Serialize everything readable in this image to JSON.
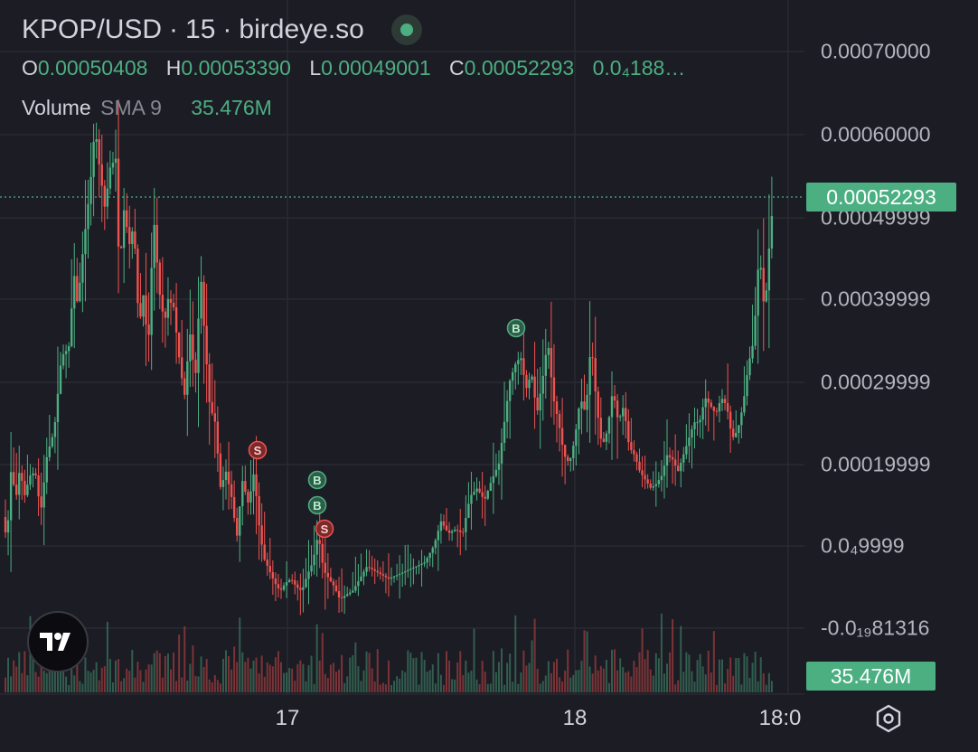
{
  "header": {
    "symbol": "KPOP/USD",
    "interval_sep": "·",
    "interval": "15",
    "source": "birdeye.so",
    "ohlc": {
      "o_label": "O",
      "o": "0.00050408",
      "h_label": "H",
      "h": "0.00053390",
      "l_label": "L",
      "l": "0.00049001",
      "c_label": "C",
      "c": "0.00052293",
      "change": "0.0₄188…"
    },
    "volume": {
      "label": "Volume",
      "sma": "SMA 9",
      "value": "35.476M"
    }
  },
  "price_axis": {
    "labels": [
      "0.00070000",
      "0.00060000",
      "0.00049999",
      "0.00039999",
      "0.00029999",
      "0.00019999",
      "0.0₄9999",
      "-0.0₁₉81316"
    ]
  },
  "time_axis": {
    "labels": [
      "17",
      "18",
      "18:0"
    ]
  },
  "current_price_badge": "0.00052293",
  "volume_badge": "35.476M",
  "colors": {
    "up": "#4caf82",
    "down": "#ef5350",
    "background": "#1c1c24",
    "grid": "#2a2a33"
  },
  "icons": {
    "logo": "tradingview-logo-icon",
    "settings": "settings-hexagon-icon"
  },
  "chart_data": {
    "type": "candlestick",
    "title": "KPOP/USD · 15 · birdeye.so",
    "ylim": [
      -0.0001,
      0.00072
    ],
    "x_ticks": [
      "17",
      "18",
      "18:0"
    ],
    "current_price": 0.00052293,
    "series": [
      {
        "name": "KPOP/USD",
        "close_path": [
          [
            0,
            0.000135
          ],
          [
            8,
            0.00011
          ],
          [
            12,
            0.00019
          ],
          [
            18,
            0.00016
          ],
          [
            22,
            0.000195
          ],
          [
            27,
            0.00016
          ],
          [
            33,
            0.000185
          ],
          [
            39,
            0.00019
          ],
          [
            45,
            0.00014
          ],
          [
            52,
            0.00021
          ],
          [
            60,
            0.00024
          ],
          [
            68,
            0.00033
          ],
          [
            76,
            0.00034
          ],
          [
            82,
            0.00043
          ],
          [
            86,
            0.00039
          ],
          [
            90,
            0.00044
          ],
          [
            95,
            0.00049
          ],
          [
            100,
            0.00054
          ],
          [
            105,
            0.00061
          ],
          [
            110,
            0.00056
          ],
          [
            116,
            0.00051
          ],
          [
            122,
            0.00056
          ],
          [
            128,
            0.00057
          ],
          [
            132,
            0.00043
          ],
          [
            138,
            0.00052
          ],
          [
            142,
            0.00046
          ],
          [
            148,
            0.00049
          ],
          [
            154,
            0.00036
          ],
          [
            158,
            0.00041
          ],
          [
            164,
            0.00034
          ],
          [
            170,
            0.0005
          ],
          [
            176,
            0.00041
          ],
          [
            182,
            0.00037
          ],
          [
            186,
            0.0004
          ],
          [
            192,
            0.00039
          ],
          [
            198,
            0.00033
          ],
          [
            204,
            0.00028
          ],
          [
            210,
            0.00036
          ],
          [
            216,
            0.0003
          ],
          [
            222,
            0.00043
          ],
          [
            226,
            0.00036
          ],
          [
            232,
            0.00027
          ],
          [
            238,
            0.00025
          ],
          [
            244,
            0.00017
          ],
          [
            250,
            0.00019
          ],
          [
            256,
            0.00016
          ],
          [
            262,
            0.00011
          ],
          [
            268,
            0.00018
          ],
          [
            275,
            0.00015
          ],
          [
            281,
            0.00019
          ],
          [
            287,
            0.00012
          ],
          [
            292,
            8.5e-05
          ],
          [
            298,
            7e-05
          ],
          [
            304,
            5.5e-05
          ],
          [
            310,
            4.5e-05
          ],
          [
            316,
            5.5e-05
          ],
          [
            322,
            6e-05
          ],
          [
            328,
            5e-05
          ],
          [
            334,
            4.5e-05
          ],
          [
            340,
            6.5e-05
          ],
          [
            346,
            8e-05
          ],
          [
            352,
            0.000115
          ],
          [
            358,
            7e-05
          ],
          [
            364,
            6e-05
          ],
          [
            370,
            5e-05
          ],
          [
            376,
            3.5e-05
          ],
          [
            382,
            4e-05
          ],
          [
            390,
            4.5e-05
          ],
          [
            398,
            6e-05
          ],
          [
            406,
            7.5e-05
          ],
          [
            414,
            7e-05
          ],
          [
            422,
            6.5e-05
          ],
          [
            430,
            6e-05
          ],
          [
            440,
            6.5e-05
          ],
          [
            450,
            7e-05
          ],
          [
            460,
            7.5e-05
          ],
          [
            470,
            8e-05
          ],
          [
            480,
            0.0001
          ],
          [
            488,
            0.00013
          ],
          [
            496,
            0.000115
          ],
          [
            504,
            0.00012
          ],
          [
            512,
            0.000115
          ],
          [
            520,
            0.00016
          ],
          [
            528,
            0.00017
          ],
          [
            536,
            0.000155
          ],
          [
            544,
            0.00018
          ],
          [
            552,
            0.0002
          ],
          [
            558,
            0.00025
          ],
          [
            564,
            0.0003
          ],
          [
            570,
            0.00032
          ],
          [
            576,
            0.00033
          ],
          [
            582,
            0.00029
          ],
          [
            588,
            0.00031
          ],
          [
            594,
            0.00026
          ],
          [
            600,
            0.0003
          ],
          [
            606,
            0.00035
          ],
          [
            612,
            0.00028
          ],
          [
            618,
            0.00025
          ],
          [
            624,
            0.00021
          ],
          [
            630,
            0.0002
          ],
          [
            636,
            0.00023
          ],
          [
            642,
            0.00028
          ],
          [
            648,
            0.00026
          ],
          [
            654,
            0.00035
          ],
          [
            660,
            0.00027
          ],
          [
            666,
            0.00022
          ],
          [
            672,
            0.00024
          ],
          [
            678,
            0.00029
          ],
          [
            684,
            0.00025
          ],
          [
            690,
            0.00027
          ],
          [
            696,
            0.00022
          ],
          [
            702,
            0.00021
          ],
          [
            708,
            0.00019
          ],
          [
            714,
            0.00018
          ],
          [
            720,
            0.00017
          ],
          [
            726,
            0.000175
          ],
          [
            732,
            0.000185
          ],
          [
            738,
            0.00021
          ],
          [
            744,
            0.000205
          ],
          [
            750,
            0.00019
          ],
          [
            756,
            0.00021
          ],
          [
            762,
            0.00023
          ],
          [
            768,
            0.00025
          ],
          [
            774,
            0.00025
          ],
          [
            780,
            0.00028
          ],
          [
            786,
            0.00027
          ],
          [
            792,
            0.00026
          ],
          [
            798,
            0.00028
          ],
          [
            804,
            0.00027
          ],
          [
            810,
            0.00023
          ],
          [
            816,
            0.00024
          ],
          [
            822,
            0.00027
          ],
          [
            828,
            0.00032
          ],
          [
            834,
            0.00035
          ],
          [
            840,
            0.00046
          ],
          [
            846,
            0.00038
          ],
          [
            852,
            0.00048
          ],
          [
            856,
            0.00052293
          ]
        ]
      }
    ],
    "volume_sma9": "35.476M",
    "trade_markers": [
      {
        "label": "S",
        "side": "sell",
        "price": 0.000225
      },
      {
        "label": "B",
        "side": "buy",
        "price": 0.00013
      },
      {
        "label": "B",
        "side": "buy",
        "price": 0.0001
      },
      {
        "label": "S",
        "side": "sell",
        "price": 7.5e-05
      },
      {
        "label": "B",
        "side": "buy",
        "price": 0.00037
      }
    ]
  }
}
